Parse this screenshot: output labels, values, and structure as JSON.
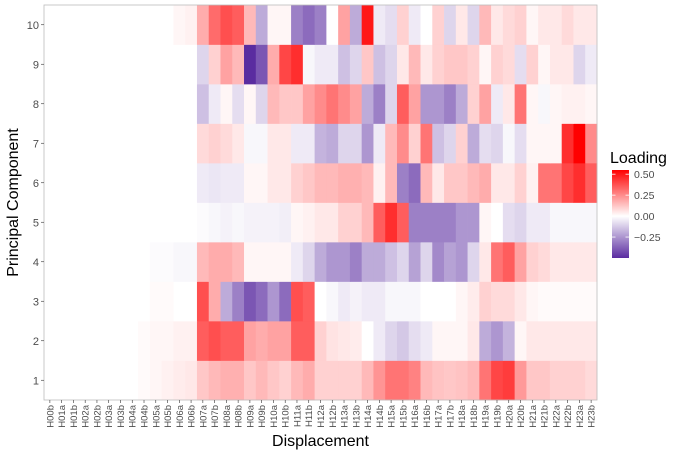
{
  "chart_data": {
    "type": "heatmap",
    "xlabel": "Displacement",
    "ylabel": "Principal Component",
    "x": [
      "H00b",
      "H01a",
      "H01b",
      "H02a",
      "H02b",
      "H03a",
      "H03b",
      "H04a",
      "H04b",
      "H05a",
      "H05b",
      "H06a",
      "H06b",
      "H07a",
      "H07b",
      "H08a",
      "H08b",
      "H09a",
      "H09b",
      "H10a",
      "H10b",
      "H11a",
      "H11b",
      "H12a",
      "H12b",
      "H13a",
      "H13b",
      "H14a",
      "H14b",
      "H15a",
      "H15b",
      "H16a",
      "H16b",
      "H17a",
      "H17b",
      "H18a",
      "H18b",
      "H19a",
      "H19b",
      "H20a",
      "H20b",
      "H21a",
      "H21b",
      "H22a",
      "H22b",
      "H23a",
      "H23b"
    ],
    "y": [
      "1",
      "2",
      "3",
      "4",
      "5",
      "6",
      "7",
      "8",
      "9",
      "10"
    ],
    "z": [
      [
        0,
        0,
        0,
        0,
        0,
        0,
        0,
        0,
        0.01,
        0.02,
        0.03,
        0.04,
        0.05,
        0.12,
        0.15,
        0.17,
        0.17,
        0.12,
        0.15,
        0.12,
        0.1,
        0.15,
        0.18,
        0.1,
        0.1,
        0.1,
        0.1,
        0.15,
        0.23,
        0.3,
        0.3,
        0.27,
        0.15,
        0.13,
        0.12,
        0.13,
        0.15,
        0.3,
        0.4,
        0.42,
        0.22,
        0.12,
        0.12,
        0.1,
        0.1,
        0.1,
        0.08
      ],
      [
        0,
        0,
        0,
        0,
        0,
        0,
        0,
        0,
        0.01,
        0.02,
        0.02,
        0.03,
        0.03,
        0.35,
        0.38,
        0.35,
        0.35,
        0.2,
        0.18,
        0.2,
        0.2,
        0.35,
        0.35,
        0.1,
        0.06,
        0.05,
        0.04,
        0,
        -0.05,
        -0.1,
        -0.13,
        -0.08,
        -0.05,
        0.02,
        0.02,
        0.02,
        0.05,
        -0.2,
        -0.25,
        -0.18,
        0.02,
        0.05,
        0.05,
        0.05,
        0.05,
        0.05,
        0.05
      ],
      [
        0,
        0,
        0,
        0,
        0,
        0,
        0,
        0,
        0,
        0.01,
        0.01,
        0,
        0,
        0.38,
        0.18,
        -0.2,
        -0.3,
        -0.4,
        -0.35,
        -0.25,
        -0.35,
        0.38,
        0.35,
        0,
        -0.02,
        -0.05,
        -0.03,
        -0.05,
        -0.05,
        -0.02,
        -0.02,
        -0.02,
        0,
        0,
        0,
        0.02,
        0.04,
        0.1,
        0.08,
        0.08,
        0.05,
        0.02,
        0.01,
        0.01,
        0.01,
        0.01,
        0.01
      ],
      [
        0,
        0,
        0,
        0,
        0,
        0,
        0,
        0,
        0,
        -0.01,
        -0.01,
        -0.02,
        -0.02,
        0.15,
        0.18,
        0.18,
        0.15,
        0.02,
        0.02,
        0.02,
        0.02,
        -0.05,
        -0.1,
        -0.2,
        -0.25,
        -0.25,
        -0.3,
        -0.2,
        -0.2,
        -0.15,
        -0.1,
        -0.22,
        -0.1,
        -0.28,
        -0.22,
        -0.25,
        -0.1,
        0.05,
        0.3,
        0.35,
        0.2,
        0.1,
        0.08,
        0.05,
        0.05,
        0.05,
        0.05
      ],
      [
        0,
        0,
        0,
        0,
        0,
        0,
        0,
        0,
        0,
        0,
        0,
        0,
        0,
        -0.01,
        -0.02,
        -0.03,
        -0.02,
        -0.03,
        -0.03,
        -0.03,
        -0.04,
        0.02,
        0.03,
        0.05,
        0.05,
        0.1,
        0.1,
        0.15,
        0.35,
        0.45,
        0.35,
        -0.3,
        -0.3,
        -0.3,
        -0.3,
        -0.25,
        -0.25,
        0.02,
        0,
        -0.08,
        -0.1,
        -0.05,
        -0.05,
        -0.02,
        -0.02,
        -0.02,
        -0.02
      ],
      [
        0,
        0,
        0,
        0,
        0,
        0,
        0,
        0,
        0,
        0,
        0,
        0,
        0,
        -0.05,
        -0.06,
        -0.05,
        -0.05,
        0.02,
        0.02,
        0.05,
        0.05,
        0.1,
        0.12,
        0.15,
        0.15,
        0.17,
        0.17,
        0.15,
        0.03,
        0.15,
        -0.3,
        -0.35,
        0.15,
        0.05,
        0.12,
        0.12,
        0.15,
        0.18,
        0.05,
        0.05,
        0.1,
        0.03,
        0.3,
        0.3,
        0.4,
        0.45,
        0.35
      ],
      [
        0,
        0,
        0,
        0,
        0,
        0,
        0,
        0,
        0,
        0,
        0,
        0,
        0,
        0.08,
        0.1,
        0.08,
        0.05,
        -0.02,
        -0.02,
        0.05,
        0.05,
        -0.05,
        -0.05,
        -0.18,
        -0.2,
        -0.1,
        -0.1,
        -0.25,
        -0.05,
        0.15,
        0.25,
        0.1,
        0.3,
        -0.15,
        -0.1,
        0.1,
        -0.2,
        -0.08,
        -0.1,
        -0.02,
        -0.08,
        0.02,
        0.02,
        0.02,
        0.45,
        0.55,
        0.25
      ],
      [
        0,
        0,
        0,
        0,
        0,
        0,
        0,
        0,
        0,
        0,
        0,
        0,
        0,
        -0.15,
        -0.05,
        0.02,
        -0.08,
        0.02,
        -0.1,
        0.15,
        0.12,
        0.12,
        0.2,
        0.25,
        0.3,
        0.25,
        0.2,
        -0.2,
        -0.3,
        -0.1,
        0.35,
        0.2,
        -0.25,
        -0.25,
        -0.3,
        -0.2,
        0.1,
        0.2,
        -0.05,
        0.05,
        0.3,
        0.02,
        -0.02,
        0.02,
        0.03,
        0.03,
        0.02
      ],
      [
        0,
        0,
        0,
        0,
        0,
        0,
        0,
        0,
        0,
        0,
        0,
        0,
        0,
        -0.1,
        0.1,
        0.2,
        0.15,
        -0.5,
        -0.4,
        0.18,
        0.4,
        0.45,
        -0.02,
        -0.05,
        -0.05,
        -0.15,
        -0.1,
        0.12,
        -0.15,
        -0.1,
        0.05,
        0.15,
        0.05,
        0.1,
        0.12,
        0.12,
        0.1,
        0.02,
        0.1,
        0.08,
        -0.08,
        0.1,
        0.02,
        0.05,
        0.05,
        -0.1,
        -0.05
      ],
      [
        0,
        0,
        0,
        0,
        0,
        0,
        0,
        0,
        0,
        0,
        0,
        0.02,
        0.03,
        0.18,
        0.32,
        0.38,
        0.35,
        0.15,
        -0.2,
        0.02,
        0.02,
        -0.3,
        -0.35,
        -0.3,
        0,
        0.2,
        -0.2,
        0.5,
        -0.05,
        -0.08,
        0.1,
        -0.05,
        0,
        0.1,
        -0.1,
        0.05,
        -0.1,
        0.15,
        0.05,
        0.08,
        0.1,
        0.02,
        0.05,
        0.05,
        0.08,
        0.05,
        0.05
      ]
    ],
    "legend": {
      "title": "Loading",
      "ticks": [
        0.5,
        0.25,
        0.0,
        -0.25
      ],
      "tick_labels": [
        "0.50",
        "0.25",
        "0.00",
        "−0.25"
      ],
      "range": [
        -0.5,
        0.55
      ],
      "placement": "right"
    },
    "colors": {
      "low": "#5a2ca0",
      "mid": "#ffffff",
      "high": "#ff0000",
      "panel_border": "#bdbdbd",
      "tick_text": "#4d4d4d"
    },
    "grid": false
  }
}
